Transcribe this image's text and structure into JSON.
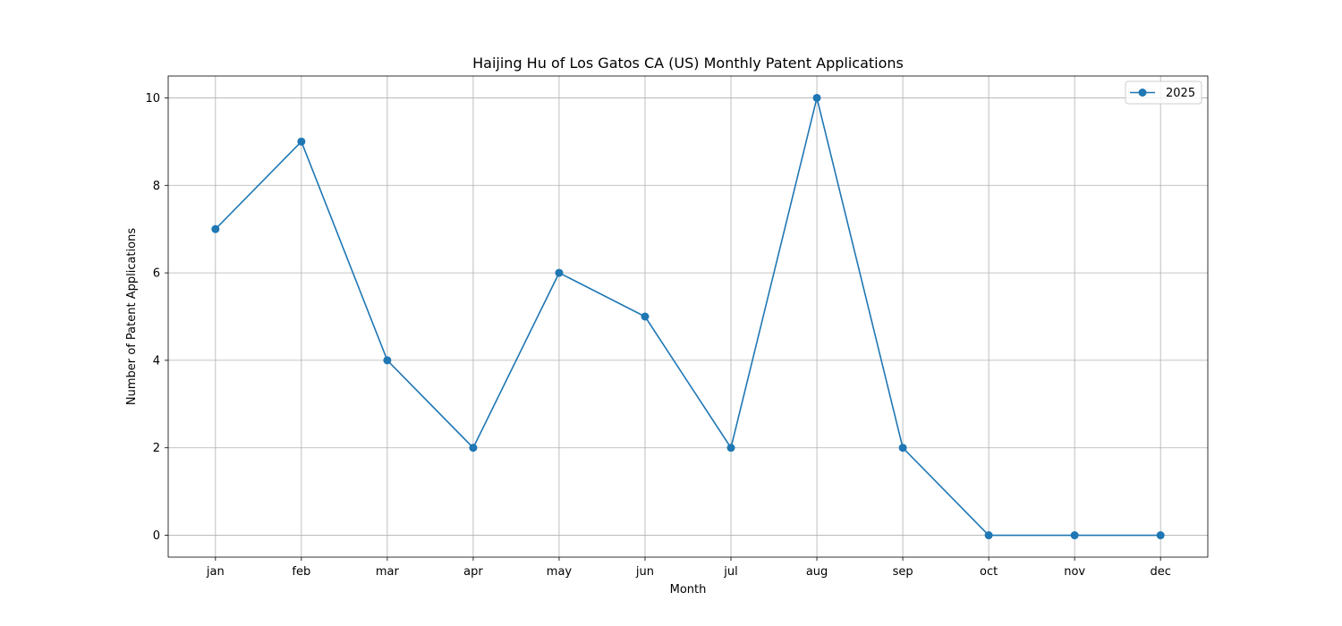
{
  "chart_data": {
    "type": "line",
    "title": "Haijing Hu of Los Gatos CA (US) Monthly Patent Applications",
    "xlabel": "Month",
    "ylabel": "Number of Patent Applications",
    "categories": [
      "jan",
      "feb",
      "mar",
      "apr",
      "may",
      "jun",
      "jul",
      "aug",
      "sep",
      "oct",
      "nov",
      "dec"
    ],
    "series": [
      {
        "name": "2025",
        "values": [
          7,
          9,
          4,
          2,
          6,
          5,
          2,
          10,
          2,
          0,
          0,
          0
        ],
        "color": "#1f77b4",
        "marker": "circle"
      }
    ],
    "yticks": [
      0,
      2,
      4,
      6,
      8,
      10
    ],
    "ylim": [
      -0.5,
      10.5
    ],
    "grid": true,
    "legend_position": "top-right"
  }
}
